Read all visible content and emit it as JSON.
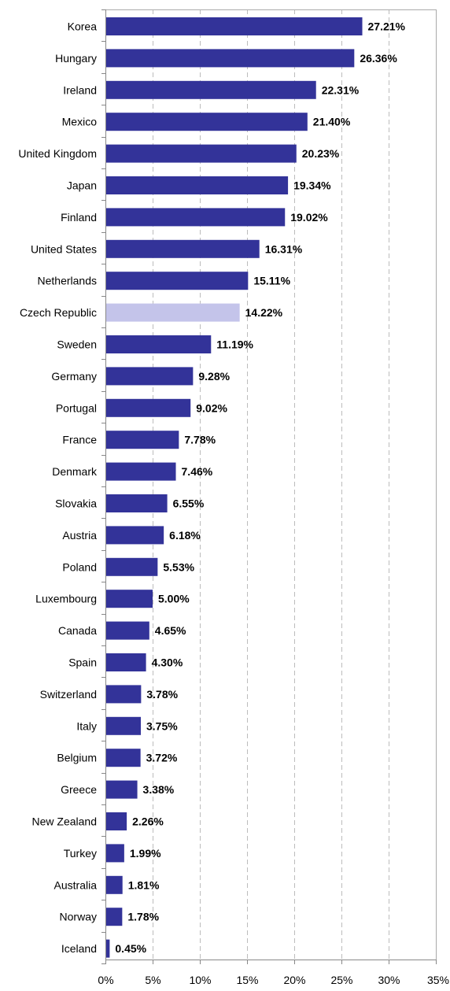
{
  "chart_data": {
    "type": "bar",
    "orientation": "horizontal",
    "categories": [
      "Korea",
      "Hungary",
      "Ireland",
      "Mexico",
      "United Kingdom",
      "Japan",
      "Finland",
      "United States",
      "Netherlands",
      "Czech Republic",
      "Sweden",
      "Germany",
      "Portugal",
      "France",
      "Denmark",
      "Slovakia",
      "Austria",
      "Poland",
      "Luxembourg",
      "Canada",
      "Spain",
      "Switzerland",
      "Italy",
      "Belgium",
      "Greece",
      "New Zealand",
      "Turkey",
      "Australia",
      "Norway",
      "Iceland"
    ],
    "values": [
      27.21,
      26.36,
      22.31,
      21.4,
      20.23,
      19.34,
      19.02,
      16.31,
      15.11,
      14.22,
      11.19,
      9.28,
      9.02,
      7.78,
      7.46,
      6.55,
      6.18,
      5.53,
      5.0,
      4.65,
      4.3,
      3.78,
      3.75,
      3.72,
      3.38,
      2.26,
      1.99,
      1.81,
      1.78,
      0.45
    ],
    "value_labels": [
      "27.21%",
      "26.36%",
      "22.31%",
      "21.40%",
      "20.23%",
      "19.34%",
      "19.02%",
      "16.31%",
      "15.11%",
      "14.22%",
      "11.19%",
      "9.28%",
      "9.02%",
      "7.78%",
      "7.46%",
      "6.55%",
      "6.18%",
      "5.53%",
      "5.00%",
      "4.65%",
      "4.30%",
      "3.78%",
      "3.75%",
      "3.72%",
      "3.38%",
      "2.26%",
      "1.99%",
      "1.81%",
      "1.78%",
      "0.45%"
    ],
    "highlight_category": "Czech Republic",
    "xlim": [
      0,
      35
    ],
    "x_ticks": [
      0,
      5,
      10,
      15,
      20,
      25,
      30,
      35
    ],
    "x_tick_labels": [
      "0%",
      "5%",
      "10%",
      "15%",
      "20%",
      "25%",
      "30%",
      "35%"
    ],
    "title": "",
    "xlabel": "",
    "ylabel": "",
    "grid": "vertical dashed",
    "legend": "none",
    "colors": {
      "bar": "#333399",
      "highlight": "#c4c4ea",
      "grid": "#bcbcbc",
      "axis": "#888888",
      "frame": "#aaaaaa"
    }
  }
}
